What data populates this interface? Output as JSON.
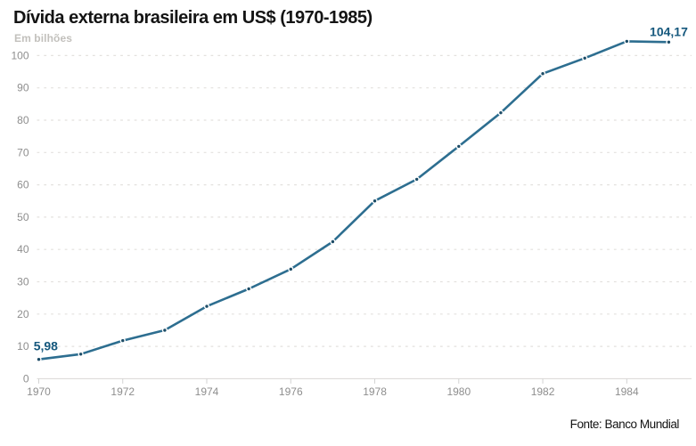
{
  "header": {
    "title": "Dívida externa brasileira em US$ (1970-1985)",
    "unit_label": "Em bilhões"
  },
  "footer": {
    "source": "Fonte: Banco Mundial"
  },
  "chart_data": {
    "type": "line",
    "title": "Dívida externa brasileira em US$ (1970-1985)",
    "subtitle": "Em bilhões",
    "source": "Fonte: Banco Mundial",
    "x": [
      1970,
      1971,
      1972,
      1973,
      1974,
      1975,
      1976,
      1977,
      1978,
      1979,
      1980,
      1981,
      1982,
      1983,
      1984,
      1985
    ],
    "series": [
      {
        "name": "Dívida externa brasileira (US$ bilhões)",
        "values": [
          5.98,
          7.6,
          11.8,
          15.0,
          22.4,
          27.8,
          33.9,
          42.4,
          55.0,
          61.7,
          71.9,
          82.3,
          94.4,
          99.2,
          104.4,
          104.17
        ]
      }
    ],
    "xlabel": "",
    "ylabel": "Em bilhões",
    "ylim": [
      0,
      100
    ],
    "y_ticks": [
      0,
      10,
      20,
      30,
      40,
      50,
      60,
      70,
      80,
      90,
      100
    ],
    "x_ticks": [
      1970,
      1972,
      1974,
      1976,
      1978,
      1980,
      1982,
      1984
    ],
    "grid": "horizontal-dashed",
    "legend": "none",
    "annotations": [
      {
        "x": 1970,
        "text": "5,98"
      },
      {
        "x": 1985,
        "text": "104,17"
      }
    ],
    "colors": {
      "line": "#2d6e90",
      "marker": "#1d4c66",
      "annotation": "#15587d",
      "grid": "#e3e1de",
      "baseline": "#dedcda",
      "tick": "#d2d2d2",
      "axis_label": "#8e8e8e",
      "title": "#141414",
      "subtitle": "#c2c0bc",
      "source": "#1a1a1a"
    }
  }
}
